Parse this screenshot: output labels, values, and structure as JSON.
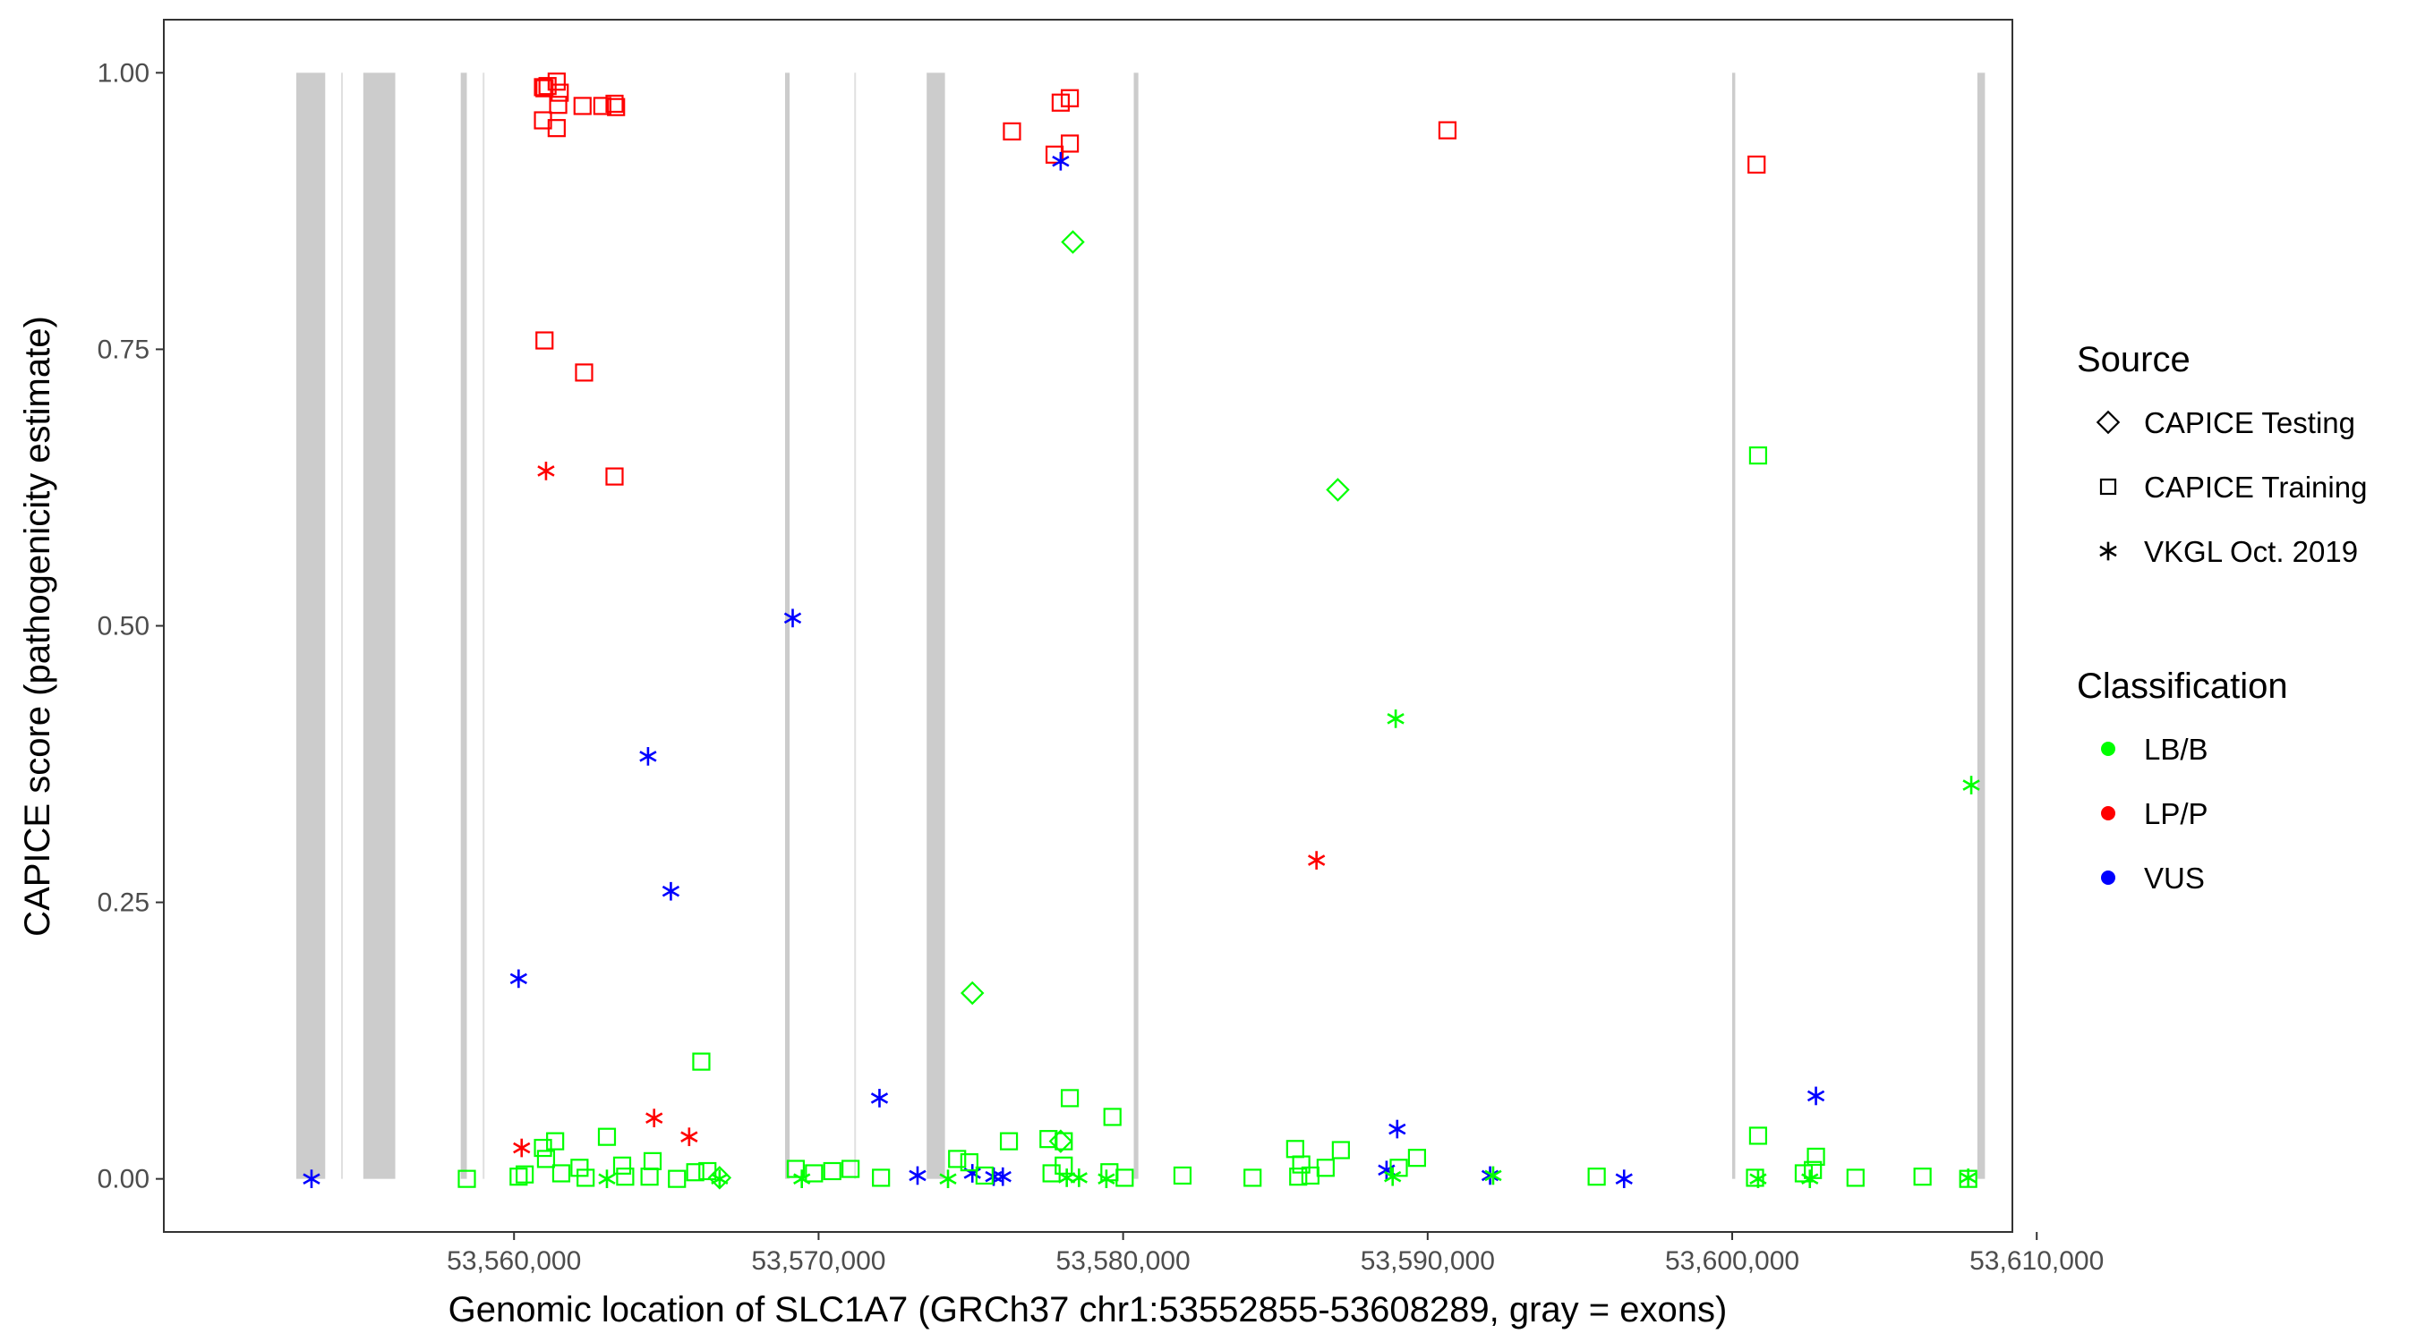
{
  "chart_data": {
    "type": "scatter",
    "title": "",
    "xlabel": "Genomic location of SLC1A7 (GRCh37 chr1:53552855-53608289, gray = exons)",
    "ylabel": "CAPICE score (pathogenicity estimate)",
    "xlim": [
      53548500,
      53609200
    ],
    "ylim": [
      -0.048,
      1.048
    ],
    "x_ticks": [
      53560000,
      53570000,
      53580000,
      53590000,
      53600000,
      53610000
    ],
    "x_tick_labels": [
      "53,560,000",
      "53,570,000",
      "53,580,000",
      "53,590,000",
      "53,600,000",
      "53,610,000"
    ],
    "y_ticks": [
      0,
      0.25,
      0.5,
      0.75,
      1.0
    ],
    "y_tick_labels": [
      "0.00",
      "0.25",
      "0.50",
      "0.75",
      "1.00"
    ],
    "grid": false,
    "legend_position": "right",
    "exons": [
      [
        53552850,
        53553800
      ],
      [
        53555050,
        53556100
      ],
      [
        53558250,
        53558450
      ],
      [
        53568900,
        53569050
      ],
      [
        53573550,
        53574150
      ],
      [
        53580350,
        53580500
      ],
      [
        53600000,
        53600100
      ],
      [
        53608050,
        53608300
      ]
    ],
    "thin_exons": [
      53554350,
      53559000,
      53571200
    ],
    "colors": {
      "LB/B": "#00ff00",
      "LP/P": "#ff0000",
      "VUS": "#0000ff"
    },
    "source_legend": {
      "title": "Source",
      "items": [
        {
          "label": "CAPICE Testing",
          "shape": "diamond"
        },
        {
          "label": "CAPICE Training",
          "shape": "square"
        },
        {
          "label": "VKGL Oct. 2019",
          "shape": "asterisk"
        }
      ]
    },
    "class_legend": {
      "title": "Classification",
      "items": [
        {
          "label": "LB/B",
          "color": "#00ff00"
        },
        {
          "label": "LP/P",
          "color": "#ff0000"
        },
        {
          "label": "VUS",
          "color": "#0000ff"
        }
      ]
    },
    "series": [
      {
        "name": "CAPICE Training / LP/P",
        "source": "CAPICE Training",
        "classification": "LP/P",
        "x": [
          53560950,
          53561000,
          53561100,
          53561400,
          53561500,
          53561450,
          53560950,
          53561400,
          53562250,
          53562900,
          53563300,
          53563350,
          53576350,
          53577750,
          53577950,
          53578250,
          53578250,
          53590650,
          53600800,
          53561000,
          53562300,
          53563300
        ],
        "y": [
          0.987,
          0.986,
          0.988,
          0.992,
          0.982,
          0.971,
          0.957,
          0.95,
          0.97,
          0.97,
          0.972,
          0.969,
          0.947,
          0.926,
          0.973,
          0.977,
          0.936,
          0.948,
          0.917,
          0.758,
          0.729,
          0.635
        ]
      },
      {
        "name": "VKGL Oct. 2019 / LP/P",
        "source": "VKGL Oct. 2019",
        "classification": "LP/P",
        "x": [
          53561050,
          53586350,
          53560250,
          53564600,
          53565750
        ],
        "y": [
          0.64,
          0.288,
          0.028,
          0.055,
          0.038
        ]
      },
      {
        "name": "VKGL Oct. 2019 / VUS",
        "source": "VKGL Oct. 2019",
        "classification": "VUS",
        "x": [
          53553350,
          53577950,
          53569150,
          53564400,
          53565150,
          53560150,
          53572000,
          53602750,
          53589000,
          53588650,
          53592050,
          53596450,
          53573250,
          53575050,
          53575750,
          53576050
        ],
        "y": [
          0.0,
          0.92,
          0.507,
          0.382,
          0.26,
          0.181,
          0.073,
          0.075,
          0.045,
          0.008,
          0.003,
          0.0,
          0.003,
          0.005,
          0.002,
          0.002
        ]
      },
      {
        "name": "VKGL Oct. 2019 / LB/B",
        "source": "VKGL Oct. 2019",
        "classification": "LB/B",
        "x": [
          53588950,
          53607850,
          53566750,
          53563050,
          53569450,
          53574250,
          53578150,
          53578550,
          53579450,
          53588850,
          53592150,
          53600850,
          53602550,
          53607750
        ],
        "y": [
          0.416,
          0.356,
          0.0,
          0.0,
          0.0,
          0.0,
          0.001,
          0.001,
          0.0,
          0.002,
          0.003,
          0.0,
          0.0,
          0.001
        ]
      },
      {
        "name": "CAPICE Testing / LB/B",
        "source": "CAPICE Testing",
        "classification": "LB/B",
        "x": [
          53578350,
          53587050,
          53575050,
          53577950,
          53566750
        ],
        "y": [
          0.847,
          0.623,
          0.168,
          0.034,
          0.001
        ]
      },
      {
        "name": "CAPICE Training / LB/B",
        "source": "CAPICE Training",
        "classification": "LB/B",
        "x": [
          53600850,
          53566150,
          53578250,
          53579650,
          53600850,
          53563050,
          53561350,
          53560950,
          53561050,
          53562150,
          53563550,
          53564550,
          53565950,
          53566350,
          53576250,
          53577550,
          53578050,
          53585650,
          53587150,
          53589650,
          53602750,
          53558450,
          53560150,
          53560350,
          53562350,
          53563650,
          53565350,
          53569250,
          53569850,
          53570450,
          53571050,
          53572050,
          53574550,
          53574950,
          53575450,
          53577650,
          53578050,
          53579550,
          53581950,
          53584250,
          53585850,
          53586150,
          53586650,
          53589050,
          53595550,
          53600750,
          53602350,
          53602650,
          53604050,
          53606250,
          53607750,
          53561550,
          53564450,
          53580050,
          53585750
        ],
        "y": [
          0.654,
          0.106,
          0.073,
          0.056,
          0.039,
          0.038,
          0.034,
          0.028,
          0.018,
          0.01,
          0.012,
          0.016,
          0.006,
          0.007,
          0.034,
          0.036,
          0.034,
          0.027,
          0.026,
          0.019,
          0.02,
          0.0,
          0.002,
          0.004,
          0.001,
          0.002,
          0.0,
          0.009,
          0.005,
          0.007,
          0.009,
          0.001,
          0.018,
          0.015,
          0.003,
          0.005,
          0.012,
          0.006,
          0.003,
          0.001,
          0.013,
          0.003,
          0.01,
          0.01,
          0.002,
          0.001,
          0.005,
          0.008,
          0.001,
          0.002,
          0.0,
          0.005,
          0.002,
          0.001,
          0.002
        ]
      }
    ]
  }
}
